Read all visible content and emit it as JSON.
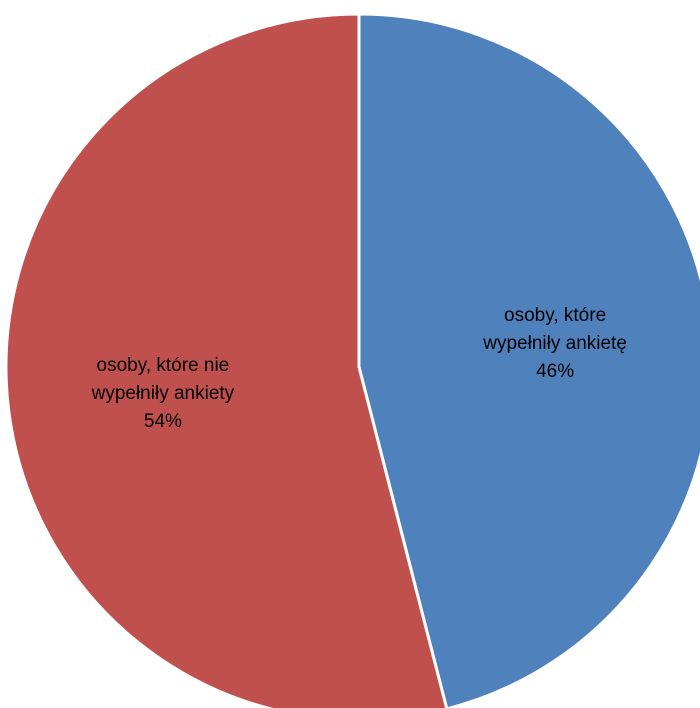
{
  "chart_data": {
    "type": "pie",
    "title": "",
    "start_angle_deg": 0,
    "direction": "clockwise",
    "slices": [
      {
        "label_lines": [
          "osoby, które",
          "wypełniły ankietę"
        ],
        "percent_label": "46%",
        "value": 46,
        "color": "#4F81BD"
      },
      {
        "label_lines": [
          "osoby, które nie",
          "wypełniły ankiety"
        ],
        "percent_label": "54%",
        "value": 54,
        "color": "#C0504D"
      }
    ],
    "legend": "none"
  }
}
